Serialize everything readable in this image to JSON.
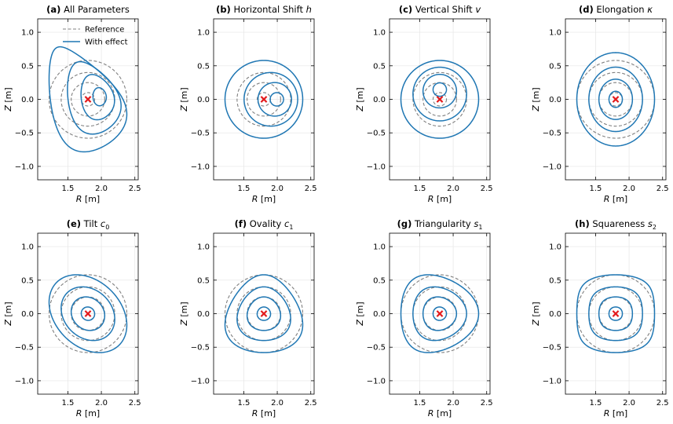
{
  "legend": {
    "reference_label": "Reference",
    "effect_label": "With effect"
  },
  "colors": {
    "reference": "#808080",
    "effect": "#1f77b4",
    "axis_marker": "#e31a1c"
  },
  "chart_data": [
    {
      "type": "line",
      "id": "a",
      "title_bold": "(a)",
      "title_text": "All Parameters",
      "title_math": "",
      "xlabel": "R",
      "xunit": "[m]",
      "ylabel": "Z",
      "yunit": "[m]",
      "xlim": [
        1.05,
        2.55
      ],
      "ylim": [
        -1.2,
        1.2
      ],
      "xticks": [
        1.5,
        2.0,
        2.5
      ],
      "yticks": [
        -1.0,
        -0.5,
        0.0,
        0.5,
        1.0
      ],
      "grid": true,
      "legend": "top-right",
      "magnetic_axis": {
        "R": 1.8,
        "Z": 0.0
      },
      "reference_radii": [
        0.1,
        0.25,
        0.4,
        0.58
      ],
      "params": {
        "h": 0.18,
        "v": 0.04,
        "kappa": 1.35,
        "c0": 0.35,
        "c1": 0.1,
        "s1": 0.45,
        "s2": 0.05
      }
    },
    {
      "type": "line",
      "id": "b",
      "title_bold": "(b)",
      "title_text": "Horizontal Shift",
      "title_math": "h",
      "xlabel": "R",
      "xunit": "[m]",
      "ylabel": "Z",
      "yunit": "[m]",
      "xlim": [
        1.05,
        2.55
      ],
      "ylim": [
        -1.2,
        1.2
      ],
      "xticks": [
        1.5,
        2.0,
        2.5
      ],
      "yticks": [
        -1.0,
        -0.5,
        0.0,
        0.5,
        1.0
      ],
      "grid": true,
      "magnetic_axis": {
        "R": 1.8,
        "Z": 0.0
      },
      "reference_radii": [
        0.1,
        0.25,
        0.4,
        0.58
      ],
      "params": {
        "h": 0.2,
        "v": 0,
        "kappa": 1.0,
        "c0": 0,
        "c1": 0,
        "s1": 0,
        "s2": 0
      }
    },
    {
      "type": "line",
      "id": "c",
      "title_bold": "(c)",
      "title_text": "Vertical Shift",
      "title_math": "v",
      "xlabel": "R",
      "xunit": "[m]",
      "ylabel": "Z",
      "yunit": "[m]",
      "xlim": [
        1.05,
        2.55
      ],
      "ylim": [
        -1.2,
        1.2
      ],
      "xticks": [
        1.5,
        2.0,
        2.5
      ],
      "yticks": [
        -1.0,
        -0.5,
        0.0,
        0.5,
        1.0
      ],
      "grid": true,
      "magnetic_axis": {
        "R": 1.8,
        "Z": 0.0
      },
      "reference_radii": [
        0.1,
        0.25,
        0.4,
        0.58
      ],
      "params": {
        "h": 0,
        "v": 0.15,
        "kappa": 1.0,
        "c0": 0,
        "c1": 0,
        "s1": 0,
        "s2": 0
      }
    },
    {
      "type": "line",
      "id": "d",
      "title_bold": "(d)",
      "title_text": "Elongation",
      "title_math": "κ",
      "xlabel": "R",
      "xunit": "[m]",
      "ylabel": "Z",
      "yunit": "[m]",
      "xlim": [
        1.05,
        2.55
      ],
      "ylim": [
        -1.2,
        1.2
      ],
      "xticks": [
        1.5,
        2.0,
        2.5
      ],
      "yticks": [
        -1.0,
        -0.5,
        0.0,
        0.5,
        1.0
      ],
      "grid": true,
      "magnetic_axis": {
        "R": 1.8,
        "Z": 0.0
      },
      "reference_radii": [
        0.1,
        0.25,
        0.4,
        0.58
      ],
      "params": {
        "h": 0,
        "v": 0,
        "kappa": 1.2,
        "c0": 0,
        "c1": 0,
        "s1": 0,
        "s2": 0
      }
    },
    {
      "type": "line",
      "id": "e",
      "title_bold": "(e)",
      "title_text": "Tilt",
      "title_math": "c",
      "title_sub": "0",
      "xlabel": "R",
      "xunit": "[m]",
      "ylabel": "Z",
      "yunit": "[m]",
      "xlim": [
        1.05,
        2.55
      ],
      "ylim": [
        -1.2,
        1.2
      ],
      "xticks": [
        1.5,
        2.0,
        2.5
      ],
      "yticks": [
        -1.0,
        -0.5,
        0.0,
        0.5,
        1.0
      ],
      "grid": true,
      "magnetic_axis": {
        "R": 1.8,
        "Z": 0.0
      },
      "reference_radii": [
        0.1,
        0.25,
        0.4,
        0.58
      ],
      "params": {
        "h": 0,
        "v": 0,
        "kappa": 1.0,
        "c0": 0.3,
        "c1": 0,
        "s1": 0,
        "s2": 0
      }
    },
    {
      "type": "line",
      "id": "f",
      "title_bold": "(f)",
      "title_text": "Ovality",
      "title_math": "c",
      "title_sub": "1",
      "xlabel": "R",
      "xunit": "[m]",
      "ylabel": "Z",
      "yunit": "[m]",
      "xlim": [
        1.05,
        2.55
      ],
      "ylim": [
        -1.2,
        1.2
      ],
      "xticks": [
        1.5,
        2.0,
        2.5
      ],
      "yticks": [
        -1.0,
        -0.5,
        0.0,
        0.5,
        1.0
      ],
      "grid": true,
      "magnetic_axis": {
        "R": 1.8,
        "Z": 0.0
      },
      "reference_radii": [
        0.1,
        0.25,
        0.4,
        0.58
      ],
      "params": {
        "h": 0,
        "v": 0,
        "kappa": 1.0,
        "c0": 0,
        "c1": 0.3,
        "s1": 0,
        "s2": 0
      }
    },
    {
      "type": "line",
      "id": "g",
      "title_bold": "(g)",
      "title_text": "Triangularity",
      "title_math": "s",
      "title_sub": "1",
      "xlabel": "R",
      "xunit": "[m]",
      "ylabel": "Z",
      "yunit": "[m]",
      "xlim": [
        1.05,
        2.55
      ],
      "ylim": [
        -1.2,
        1.2
      ],
      "xticks": [
        1.5,
        2.0,
        2.5
      ],
      "yticks": [
        -1.0,
        -0.5,
        0.0,
        0.5,
        1.0
      ],
      "grid": true,
      "magnetic_axis": {
        "R": 1.8,
        "Z": 0.0
      },
      "reference_radii": [
        0.1,
        0.25,
        0.4,
        0.58
      ],
      "params": {
        "h": 0,
        "v": 0,
        "kappa": 1.0,
        "c0": 0,
        "c1": 0,
        "s1": 0.3,
        "s2": 0
      }
    },
    {
      "type": "line",
      "id": "h",
      "title_bold": "(h)",
      "title_text": "Squareness",
      "title_math": "s",
      "title_sub": "2",
      "xlabel": "R",
      "xunit": "[m]",
      "ylabel": "Z",
      "yunit": "[m]",
      "xlim": [
        1.05,
        2.55
      ],
      "ylim": [
        -1.2,
        1.2
      ],
      "xticks": [
        1.5,
        2.0,
        2.5
      ],
      "yticks": [
        -1.0,
        -0.5,
        0.0,
        0.5,
        1.0
      ],
      "grid": true,
      "magnetic_axis": {
        "R": 1.8,
        "Z": 0.0
      },
      "reference_radii": [
        0.1,
        0.25,
        0.4,
        0.58
      ],
      "params": {
        "h": 0,
        "v": 0,
        "kappa": 1.0,
        "c0": 0,
        "c1": 0,
        "s1": 0,
        "s2": -0.25
      }
    }
  ]
}
